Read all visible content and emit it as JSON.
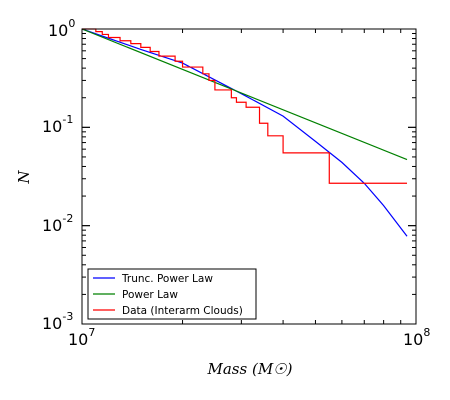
{
  "chart_data": {
    "type": "line",
    "xscale": "log",
    "yscale": "log",
    "xlim": [
      10000000,
      100000000
    ],
    "ylim": [
      0.001,
      1
    ],
    "xlabel": "Mass (M☉)",
    "ylabel": "N",
    "x_ticks": [
      {
        "value": 10000000,
        "base": "10",
        "exp": "7"
      },
      {
        "value": 100000000,
        "base": "10",
        "exp": "8"
      }
    ],
    "y_ticks": [
      {
        "value": 0.001,
        "base": "10",
        "exp": "-3"
      },
      {
        "value": 0.01,
        "base": "10",
        "exp": "-2"
      },
      {
        "value": 0.1,
        "base": "10",
        "exp": "-1"
      },
      {
        "value": 1,
        "base": "10",
        "exp": "0"
      }
    ],
    "legend_position": "lower-left",
    "series": [
      {
        "name": "Trunc. Power Law",
        "color": "#0000ff",
        "style": "line",
        "points": [
          [
            10000000,
            1.0
          ],
          [
            15000000,
            0.62
          ],
          [
            20000000,
            0.45
          ],
          [
            30000000,
            0.22
          ],
          [
            40000000,
            0.13
          ],
          [
            50000000,
            0.072
          ],
          [
            60000000,
            0.044
          ],
          [
            70000000,
            0.027
          ],
          [
            80000000,
            0.016
          ],
          [
            94000000,
            0.0078
          ]
        ]
      },
      {
        "name": "Power Law",
        "color": "#008000",
        "style": "line",
        "points": [
          [
            10000000,
            1.0
          ],
          [
            94000000,
            0.047
          ]
        ]
      },
      {
        "name": "Data (Interarm Clouds)",
        "color": "#ff0000",
        "style": "step",
        "points": [
          [
            10000000,
            1.0
          ],
          [
            11000000,
            0.94
          ],
          [
            11500000,
            0.88
          ],
          [
            12000000,
            0.82
          ],
          [
            13000000,
            0.76
          ],
          [
            14000000,
            0.71
          ],
          [
            15000000,
            0.65
          ],
          [
            16000000,
            0.59
          ],
          [
            17000000,
            0.53
          ],
          [
            19000000,
            0.47
          ],
          [
            20000000,
            0.41
          ],
          [
            23000000,
            0.35
          ],
          [
            24000000,
            0.3
          ],
          [
            25000000,
            0.24
          ],
          [
            28000000,
            0.2
          ],
          [
            29000000,
            0.18
          ],
          [
            31000000,
            0.16
          ],
          [
            34000000,
            0.11
          ],
          [
            36000000,
            0.082
          ],
          [
            40000000,
            0.055
          ],
          [
            55000000,
            0.027
          ],
          [
            94000000,
            0.027
          ]
        ]
      }
    ]
  }
}
